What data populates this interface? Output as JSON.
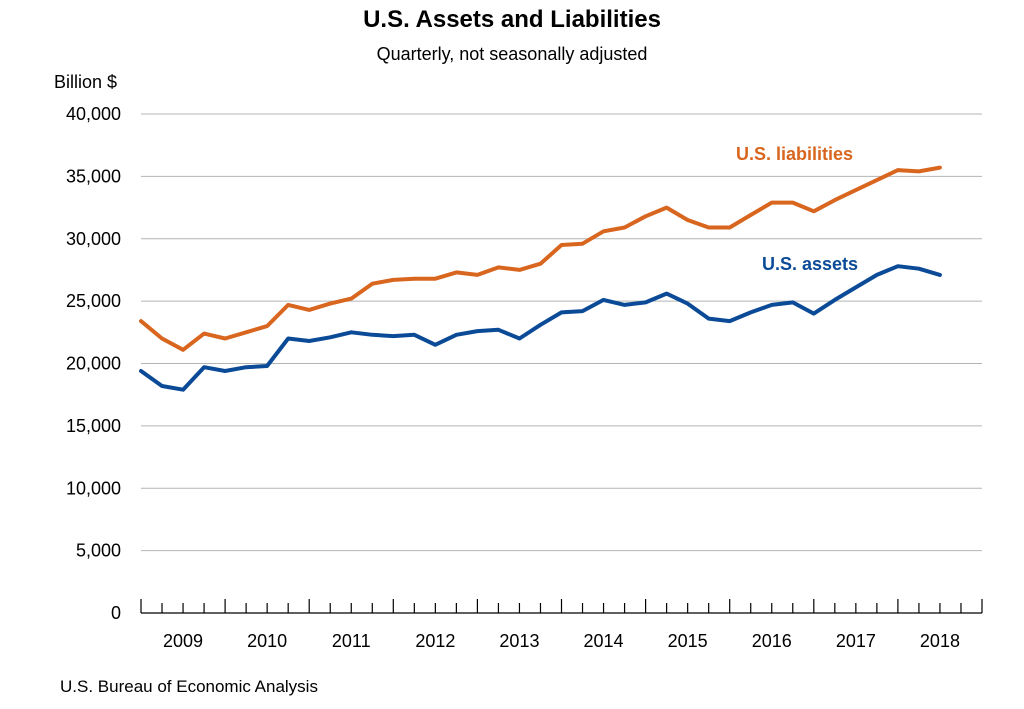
{
  "chart_data": {
    "type": "line",
    "title": "U.S. Assets and Liabilities",
    "subtitle": "Quarterly, not seasonally adjusted",
    "ylabel": "Billion $",
    "xlabel": "",
    "source": "U.S. Bureau of Economic Analysis",
    "ylim": [
      0,
      40000
    ],
    "yticks": [
      0,
      5000,
      10000,
      15000,
      20000,
      25000,
      30000,
      35000,
      40000
    ],
    "ytick_labels": [
      "0",
      "5,000",
      "10,000",
      "15,000",
      "20,000",
      "25,000",
      "30,000",
      "35,000",
      "40,000"
    ],
    "years": [
      "2009",
      "2010",
      "2011",
      "2012",
      "2013",
      "2014",
      "2015",
      "2016",
      "2017",
      "2018"
    ],
    "quarters_per_year": 4,
    "grid": true,
    "series": [
      {
        "name": "U.S. liabilities",
        "color": "#d9661f",
        "values": [
          23400,
          22000,
          21100,
          22400,
          22000,
          22500,
          23000,
          24700,
          24300,
          24800,
          25200,
          26400,
          26700,
          26800,
          26800,
          27300,
          27100,
          27700,
          27500,
          28000,
          29500,
          29600,
          30600,
          30900,
          31800,
          32500,
          31500,
          30900,
          30900,
          31900,
          32900,
          32900,
          32200,
          33100,
          33900,
          34700,
          35500,
          35400,
          35700
        ]
      },
      {
        "name": "U.S. assets",
        "color": "#0b4a96",
        "values": [
          19400,
          18200,
          17900,
          19700,
          19400,
          19700,
          19800,
          22000,
          21800,
          22100,
          22500,
          22300,
          22200,
          22300,
          21500,
          22300,
          22600,
          22700,
          22000,
          23100,
          24100,
          24200,
          25100,
          24700,
          24900,
          25600,
          24800,
          23600,
          23400,
          24100,
          24700,
          24900,
          24000,
          25100,
          26100,
          27100,
          27800,
          27600,
          27100
        ]
      }
    ]
  }
}
